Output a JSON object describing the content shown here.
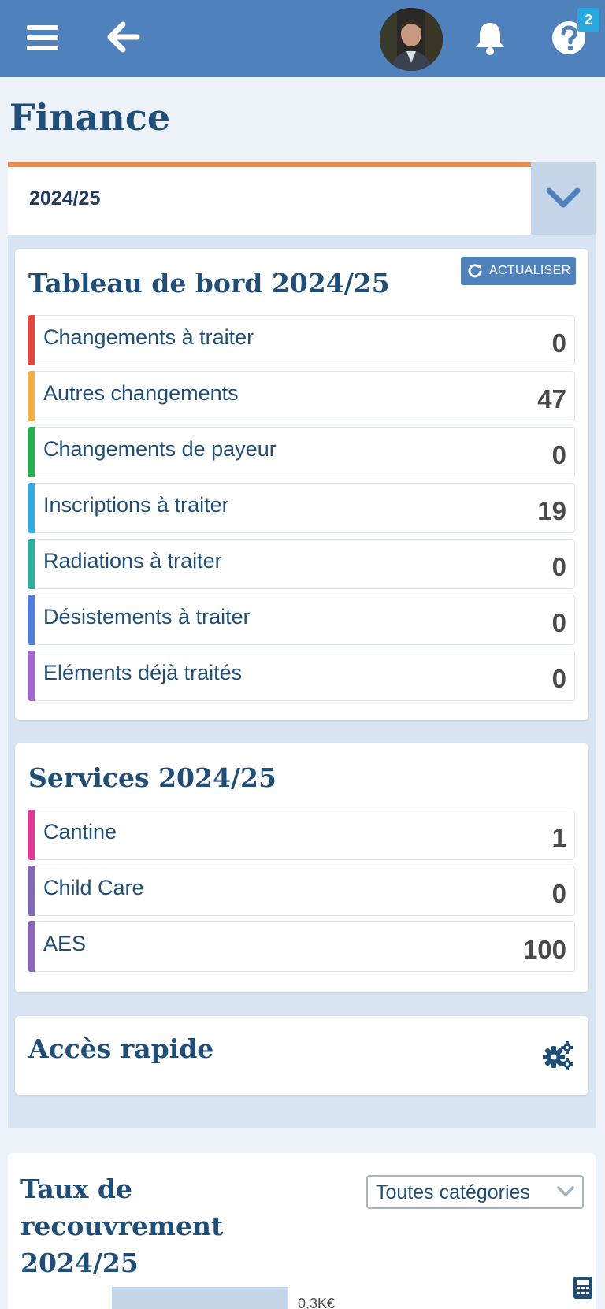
{
  "header": {
    "notification_badge": "2"
  },
  "page_title": "Finance",
  "year_selector": {
    "value": "2024/25"
  },
  "dashboard": {
    "title": "Tableau de bord 2024/25",
    "refresh_label": "ACTUALISER",
    "rows": [
      {
        "label": "Changements à traiter",
        "value": "0",
        "color": "#e8433b"
      },
      {
        "label": "Autres changements",
        "value": "47",
        "color": "#f6b13c"
      },
      {
        "label": "Changements de payeur",
        "value": "0",
        "color": "#22b24c"
      },
      {
        "label": "Inscriptions à traiter",
        "value": "19",
        "color": "#2eaee6"
      },
      {
        "label": "Radiations à traiter",
        "value": "0",
        "color": "#26b3a0"
      },
      {
        "label": "Désistements à traiter",
        "value": "0",
        "color": "#4a7ee0"
      },
      {
        "label": "Eléments déjà traités",
        "value": "0",
        "color": "#a564d3"
      }
    ]
  },
  "services": {
    "title": "Services 2024/25",
    "rows": [
      {
        "label": "Cantine",
        "value": "1",
        "color": "#e63598"
      },
      {
        "label": "Child Care",
        "value": "0",
        "color": "#8067b8"
      },
      {
        "label": "AES",
        "value": "100",
        "color": "#9063c0"
      }
    ]
  },
  "quick_access": {
    "title": "Accès rapide"
  },
  "recovery": {
    "title": "Taux de recouvrement 2024/25",
    "category_select": "Toutes catégories",
    "chart_tick": "0,3K€"
  },
  "colors": {
    "header_bg": "#4f81bd",
    "accent_orange": "#f08a4b",
    "title_blue": "#1f4e79"
  }
}
